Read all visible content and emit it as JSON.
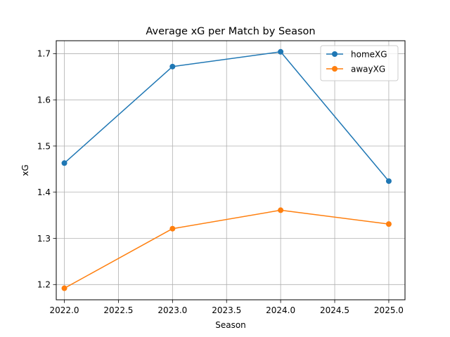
{
  "chart_data": {
    "type": "line",
    "title": "Average xG per Match by Season",
    "xlabel": "Season",
    "ylabel": "xG",
    "x": [
      2022,
      2023,
      2024,
      2025
    ],
    "xlim": [
      2021.925,
      2025.15
    ],
    "ylim": [
      1.167,
      1.728
    ],
    "xticks": [
      2022.0,
      2022.5,
      2023.0,
      2023.5,
      2024.0,
      2024.5,
      2025.0
    ],
    "xtick_labels": [
      "2022.0",
      "2022.5",
      "2023.0",
      "2023.5",
      "2024.0",
      "2024.5",
      "2025.0"
    ],
    "yticks": [
      1.2,
      1.3,
      1.4,
      1.5,
      1.6,
      1.7
    ],
    "ytick_labels": [
      "1.2",
      "1.3",
      "1.4",
      "1.5",
      "1.6",
      "1.7"
    ],
    "grid": true,
    "legend_position": "top-right",
    "series": [
      {
        "name": "homeXG",
        "color": "#1f77b4",
        "marker": "circle",
        "values": [
          1.463,
          1.672,
          1.704,
          1.424
        ]
      },
      {
        "name": "awayXG",
        "color": "#ff7f0e",
        "marker": "circle",
        "values": [
          1.192,
          1.321,
          1.361,
          1.331
        ]
      }
    ]
  }
}
